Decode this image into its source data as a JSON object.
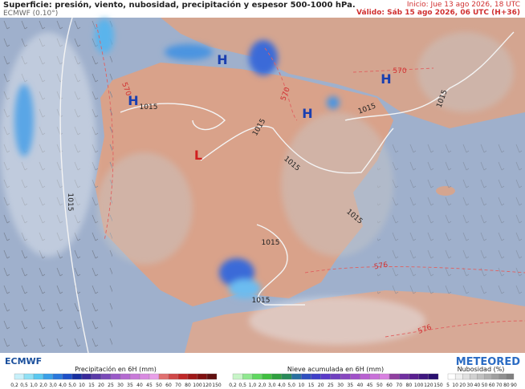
{
  "header": {
    "title": "Superficie: presión, viento, nubosidad, precipitación y espesor 500-1000 hPa.",
    "model": "ECMWF (0.10°)",
    "start": "Inicio: Jue 13 ago 2026, 18 UTC",
    "valid": "Válido: Sáb 15 ago 2026, 06 UTC (H+36)"
  },
  "map": {
    "pressure_centers": [
      "H",
      "H",
      "H",
      "H",
      "L"
    ],
    "isobar_labels": [
      "1015",
      "1015",
      "1015",
      "1015",
      "1015",
      "1015",
      "1015",
      "1015",
      "1015"
    ],
    "thickness_labels": [
      "570",
      "570",
      "570",
      "576",
      "576"
    ]
  },
  "logos": {
    "left": "ECMWF",
    "right": "METEORED"
  },
  "legends": [
    {
      "title": "Precipitación en 6H (mm)",
      "ticks": [
        "0,2",
        "0,5",
        "1,0",
        "2,0",
        "3,0",
        "4,0",
        "5,0",
        "10",
        "15",
        "20",
        "25",
        "30",
        "35",
        "40",
        "45",
        "50",
        "60",
        "70",
        "80",
        "100",
        "120",
        "150"
      ]
    },
    {
      "title": "Nieve acumulada en 6H (mm)",
      "ticks": [
        "0,2",
        "0,5",
        "1,0",
        "2,0",
        "3,0",
        "4,0",
        "5,0",
        "10",
        "15",
        "20",
        "25",
        "30",
        "35",
        "40",
        "45",
        "50",
        "60",
        "70",
        "80",
        "100",
        "120",
        "150"
      ]
    },
    {
      "title": "Nubosidad (%)",
      "ticks": [
        "5",
        "10",
        "20",
        "30",
        "40",
        "50",
        "60",
        "70",
        "80",
        "90"
      ]
    }
  ]
}
